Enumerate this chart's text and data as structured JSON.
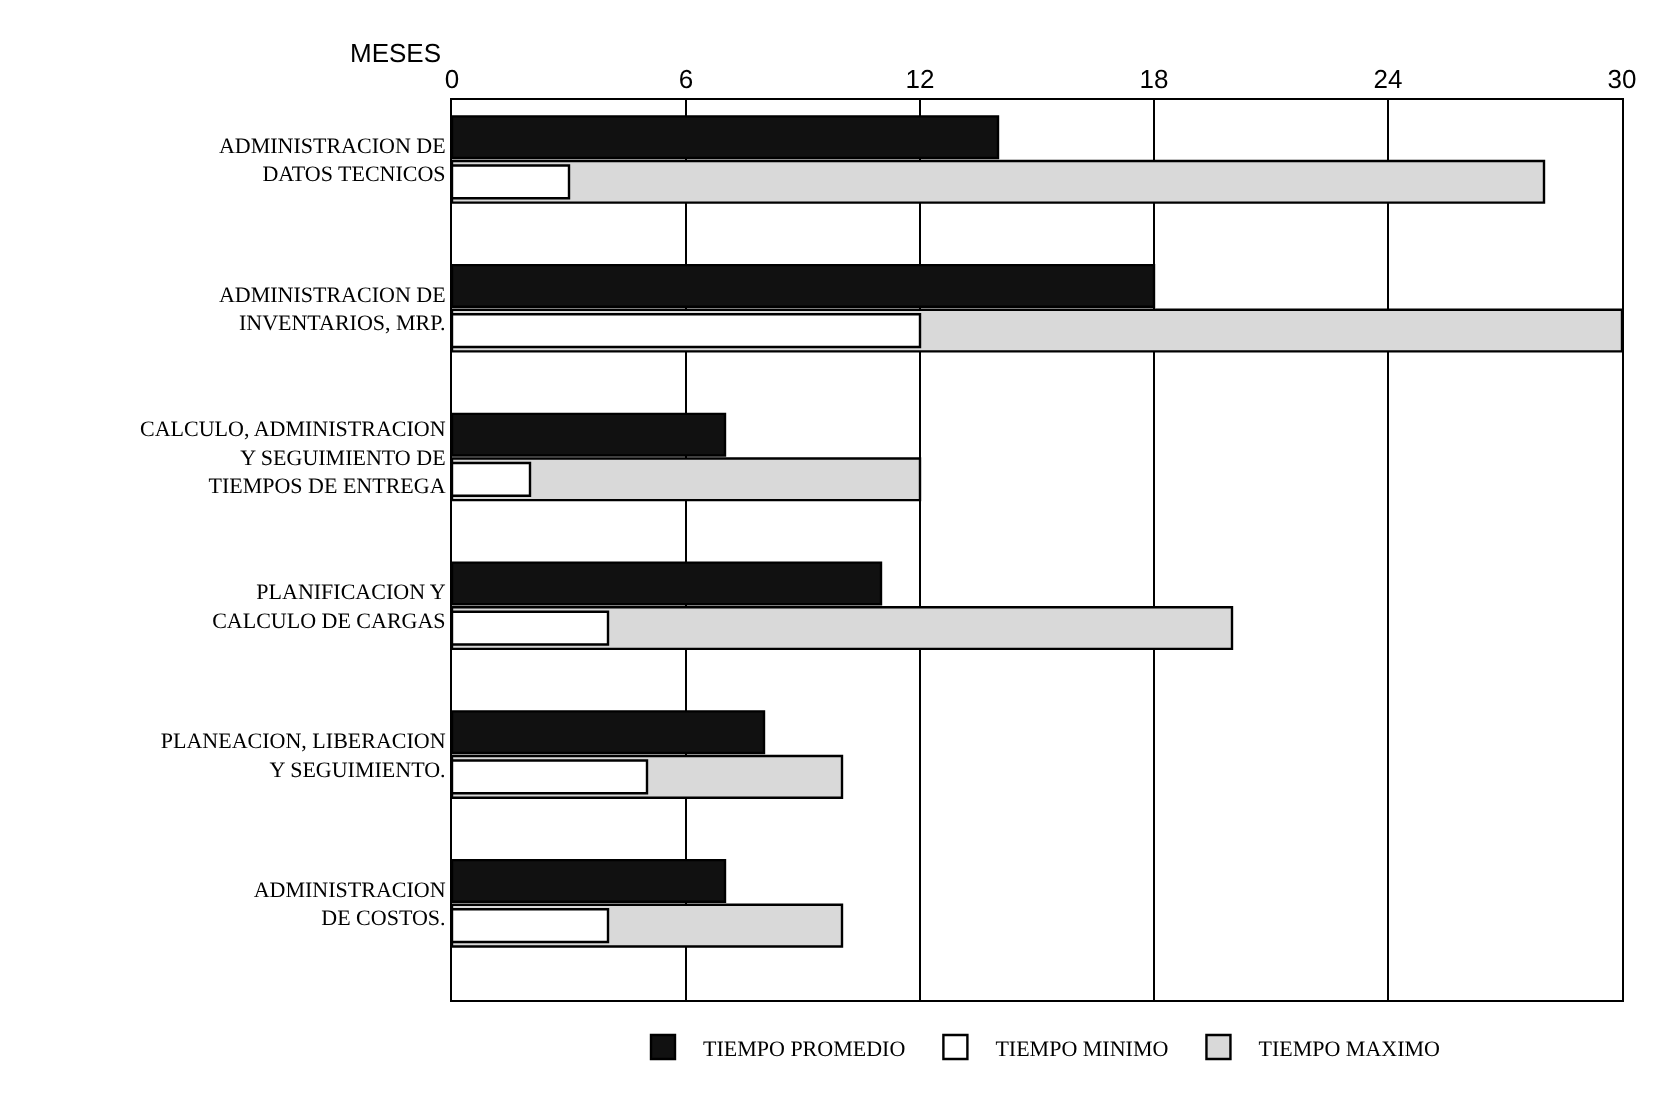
{
  "chart_data": {
    "type": "bar",
    "orientation": "horizontal",
    "xlabel": "MESES",
    "categories": [
      "ADMINISTRACION DE\nDATOS TECNICOS",
      "ADMINISTRACION DE\nINVENTARIOS, MRP.",
      "CALCULO, ADMINISTRACION\nY SEGUIMIENTO DE\nTIEMPOS DE ENTREGA",
      "PLANIFICACION Y\nCALCULO DE CARGAS",
      "PLANEACION, LIBERACION\nY SEGUIMIENTO.",
      "ADMINISTRACION\nDE COSTOS."
    ],
    "series": [
      {
        "name": "TIEMPO PROMEDIO",
        "color": "#111111",
        "values": [
          14,
          18,
          7,
          11,
          8,
          7
        ]
      },
      {
        "name": "TIEMPO MINIMO",
        "color": "#ffffff",
        "values": [
          3,
          12,
          2,
          4,
          5,
          4
        ]
      },
      {
        "name": "TIEMPO MAXIMO",
        "color": "#d9d9d9",
        "values": [
          28,
          30,
          12,
          20,
          10,
          10
        ]
      }
    ],
    "xlim": [
      0,
      30
    ],
    "xticks": [
      0,
      6,
      12,
      18,
      24,
      30
    ],
    "grid": "x",
    "legend": "bottom"
  }
}
